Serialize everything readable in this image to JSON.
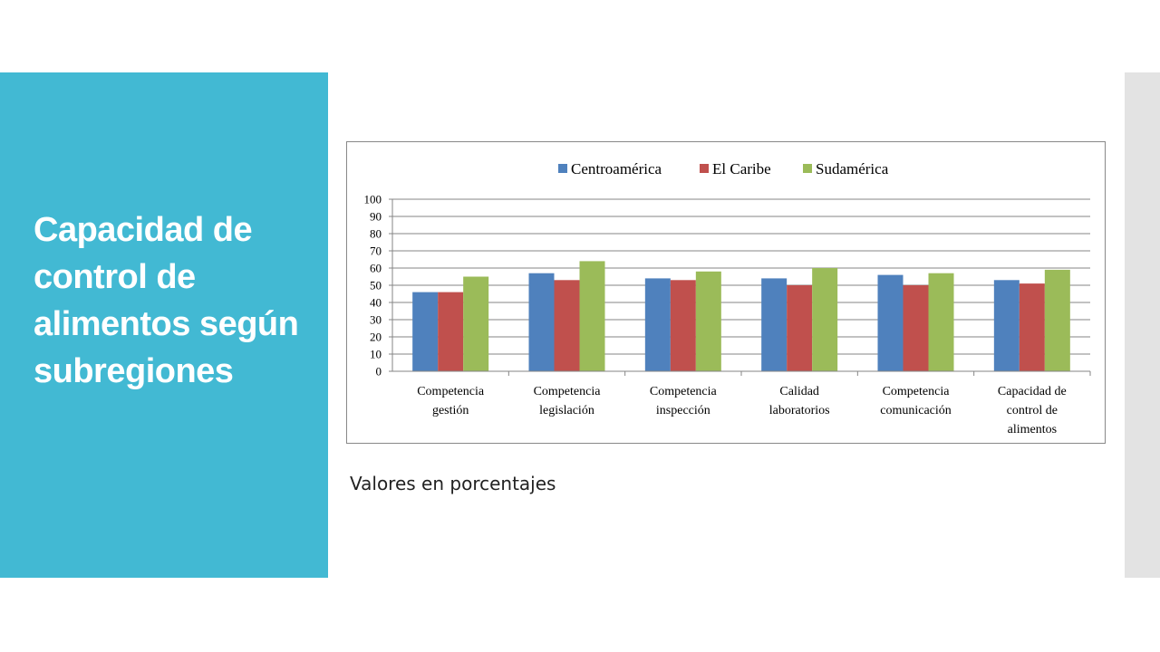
{
  "slide": {
    "title": "Capacidad de control de alimentos según subregiones",
    "caption": "Valores en porcentajes"
  },
  "colors": {
    "panel": "#42b9d3",
    "strip": "#e3e3e3",
    "grid": "#868686",
    "axis_text": "#000000"
  },
  "chart_data": {
    "type": "bar",
    "categories": [
      [
        "Competencia",
        "gestión"
      ],
      [
        "Competencia",
        "legislación"
      ],
      [
        "Competencia",
        "inspección"
      ],
      [
        "Calidad",
        "laboratorios"
      ],
      [
        "Competencia",
        "comunicación"
      ],
      [
        "Capacidad de",
        "control de",
        "alimentos"
      ]
    ],
    "series": [
      {
        "name": "Centroamérica",
        "color": "#4f81bd",
        "values": [
          46,
          57,
          54,
          54,
          56,
          53
        ]
      },
      {
        "name": "El Caribe",
        "color": "#c0504d",
        "values": [
          46,
          53,
          53,
          50,
          50,
          51
        ]
      },
      {
        "name": "Sudamérica",
        "color": "#9bbb59",
        "values": [
          55,
          64,
          58,
          60,
          57,
          59
        ]
      }
    ],
    "ylim": [
      0,
      100
    ],
    "yticks": [
      0,
      10,
      20,
      30,
      40,
      50,
      60,
      70,
      80,
      90,
      100
    ],
    "grid": true,
    "legend_position": "top"
  }
}
